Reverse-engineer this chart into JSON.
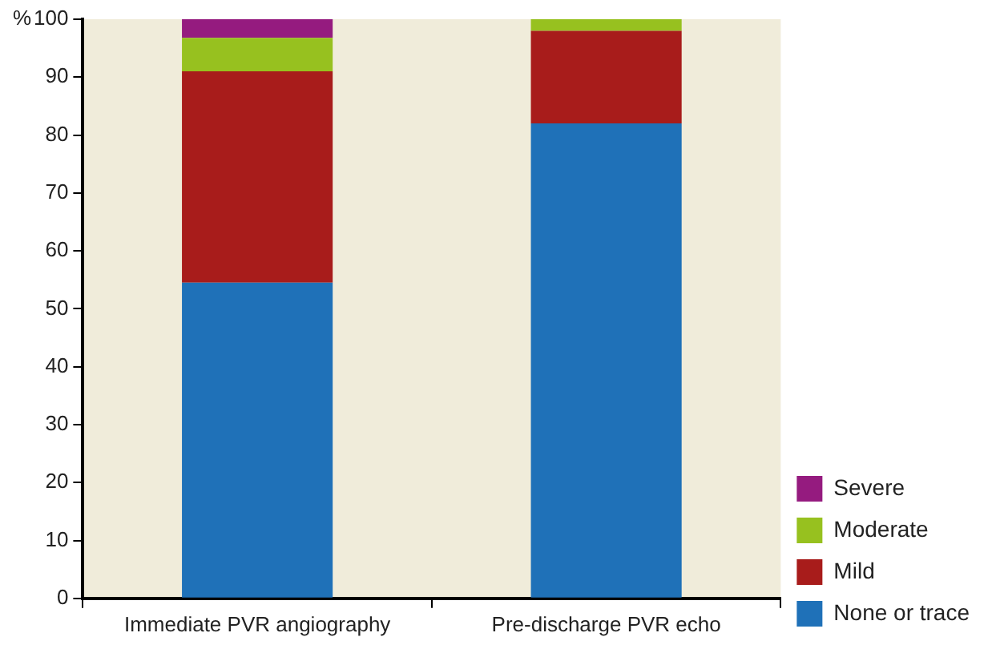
{
  "chart_data": {
    "type": "bar",
    "stacked": true,
    "ylabel": "%",
    "categories": [
      "Immediate PVR angiography",
      "Pre-discharge PVR echo"
    ],
    "series": [
      {
        "name": "None or trace",
        "color": "#1f71b8",
        "values": [
          54.5,
          82
        ]
      },
      {
        "name": "Mild",
        "color": "#a81c1b",
        "values": [
          36.5,
          16
        ]
      },
      {
        "name": "Moderate",
        "color": "#97c11f",
        "values": [
          5.8,
          2
        ]
      },
      {
        "name": "Severe",
        "color": "#951b7f",
        "values": [
          3.2,
          0
        ]
      }
    ],
    "ylim": [
      0,
      100
    ],
    "yticks": [
      0,
      10,
      20,
      30,
      40,
      50,
      60,
      70,
      80,
      90,
      100
    ],
    "grid": false,
    "legend": "bottom right"
  }
}
